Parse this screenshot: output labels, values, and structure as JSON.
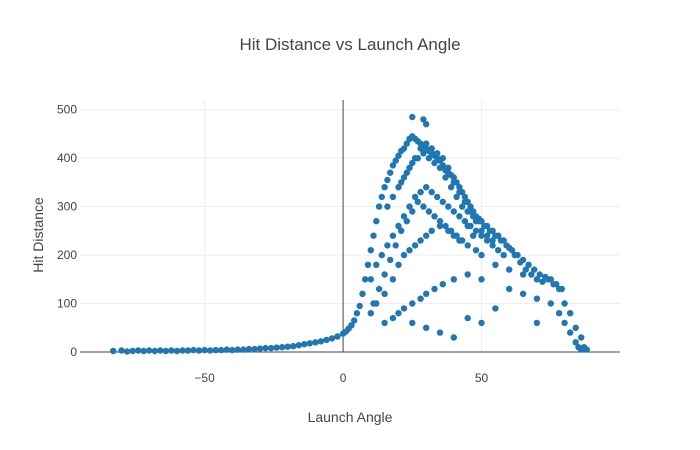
{
  "chart_data": {
    "type": "scatter",
    "title": "Hit Distance vs Launch Angle",
    "xlabel": "Launch Angle",
    "ylabel": "Hit Distance",
    "xlim": [
      -95,
      100
    ],
    "ylim": [
      0,
      520
    ],
    "xticks": [
      -50,
      0,
      50
    ],
    "yticks": [
      0,
      100,
      200,
      300,
      400,
      500
    ],
    "grid": true,
    "marker_color": "#1f77b4",
    "series": [
      {
        "name": "",
        "points": [
          [
            -83,
            2
          ],
          [
            -80,
            3
          ],
          [
            -78,
            1
          ],
          [
            -76,
            2
          ],
          [
            -74,
            3
          ],
          [
            -72,
            2
          ],
          [
            -70,
            3
          ],
          [
            -68,
            2
          ],
          [
            -66,
            3
          ],
          [
            -64,
            2
          ],
          [
            -62,
            3
          ],
          [
            -60,
            2
          ],
          [
            -58,
            3
          ],
          [
            -56,
            3
          ],
          [
            -54,
            4
          ],
          [
            -52,
            3
          ],
          [
            -50,
            4
          ],
          [
            -48,
            3
          ],
          [
            -46,
            4
          ],
          [
            -44,
            4
          ],
          [
            -42,
            5
          ],
          [
            -40,
            4
          ],
          [
            -38,
            5
          ],
          [
            -36,
            5
          ],
          [
            -34,
            6
          ],
          [
            -32,
            6
          ],
          [
            -30,
            7
          ],
          [
            -28,
            8
          ],
          [
            -26,
            8
          ],
          [
            -24,
            9
          ],
          [
            -22,
            10
          ],
          [
            -20,
            11
          ],
          [
            -18,
            12
          ],
          [
            -16,
            14
          ],
          [
            -14,
            16
          ],
          [
            -12,
            18
          ],
          [
            -10,
            20
          ],
          [
            -8,
            22
          ],
          [
            -6,
            25
          ],
          [
            -4,
            28
          ],
          [
            -2,
            32
          ],
          [
            0,
            38
          ],
          [
            1,
            42
          ],
          [
            2,
            48
          ],
          [
            3,
            55
          ],
          [
            4,
            65
          ],
          [
            5,
            80
          ],
          [
            6,
            95
          ],
          [
            7,
            120
          ],
          [
            8,
            150
          ],
          [
            9,
            180
          ],
          [
            10,
            210
          ],
          [
            11,
            240
          ],
          [
            12,
            270
          ],
          [
            13,
            300
          ],
          [
            14,
            320
          ],
          [
            15,
            340
          ],
          [
            16,
            355
          ],
          [
            17,
            370
          ],
          [
            18,
            385
          ],
          [
            19,
            395
          ],
          [
            20,
            405
          ],
          [
            21,
            415
          ],
          [
            22,
            420
          ],
          [
            23,
            430
          ],
          [
            24,
            440
          ],
          [
            25,
            445
          ],
          [
            26,
            440
          ],
          [
            27,
            435
          ],
          [
            28,
            430
          ],
          [
            29,
            425
          ],
          [
            30,
            420
          ],
          [
            31,
            415
          ],
          [
            32,
            410
          ],
          [
            33,
            405
          ],
          [
            34,
            400
          ],
          [
            35,
            395
          ],
          [
            36,
            385
          ],
          [
            37,
            375
          ],
          [
            38,
            370
          ],
          [
            39,
            365
          ],
          [
            40,
            360
          ],
          [
            41,
            350
          ],
          [
            42,
            340
          ],
          [
            43,
            330
          ],
          [
            44,
            320
          ],
          [
            45,
            310
          ],
          [
            46,
            300
          ],
          [
            47,
            290
          ],
          [
            48,
            280
          ],
          [
            49,
            275
          ],
          [
            50,
            270
          ],
          [
            52,
            260
          ],
          [
            54,
            250
          ],
          [
            56,
            240
          ],
          [
            58,
            230
          ],
          [
            60,
            215
          ],
          [
            62,
            200
          ],
          [
            64,
            185
          ],
          [
            66,
            170
          ],
          [
            68,
            160
          ],
          [
            70,
            150
          ],
          [
            72,
            145
          ],
          [
            74,
            150
          ],
          [
            76,
            140
          ],
          [
            78,
            130
          ],
          [
            80,
            100
          ],
          [
            82,
            80
          ],
          [
            84,
            50
          ],
          [
            86,
            30
          ],
          [
            87,
            10
          ],
          [
            88,
            5
          ],
          [
            25,
            485
          ],
          [
            29,
            480
          ],
          [
            30,
            470
          ],
          [
            10,
            150
          ],
          [
            12,
            180
          ],
          [
            14,
            200
          ],
          [
            16,
            220
          ],
          [
            18,
            240
          ],
          [
            20,
            260
          ],
          [
            22,
            280
          ],
          [
            24,
            300
          ],
          [
            26,
            320
          ],
          [
            28,
            330
          ],
          [
            30,
            340
          ],
          [
            32,
            330
          ],
          [
            34,
            320
          ],
          [
            36,
            310
          ],
          [
            38,
            300
          ],
          [
            40,
            290
          ],
          [
            42,
            280
          ],
          [
            44,
            270
          ],
          [
            46,
            260
          ],
          [
            48,
            250
          ],
          [
            50,
            240
          ],
          [
            52,
            230
          ],
          [
            54,
            220
          ],
          [
            56,
            210
          ],
          [
            58,
            200
          ],
          [
            12,
            100
          ],
          [
            15,
            120
          ],
          [
            18,
            150
          ],
          [
            20,
            180
          ],
          [
            22,
            200
          ],
          [
            24,
            210
          ],
          [
            26,
            220
          ],
          [
            28,
            230
          ],
          [
            30,
            240
          ],
          [
            32,
            250
          ],
          [
            35,
            260
          ],
          [
            38,
            250
          ],
          [
            40,
            240
          ],
          [
            42,
            230
          ],
          [
            45,
            220
          ],
          [
            48,
            210
          ],
          [
            50,
            200
          ],
          [
            55,
            180
          ],
          [
            60,
            170
          ],
          [
            65,
            160
          ],
          [
            20,
            80
          ],
          [
            22,
            90
          ],
          [
            25,
            100
          ],
          [
            28,
            110
          ],
          [
            30,
            120
          ],
          [
            33,
            130
          ],
          [
            36,
            140
          ],
          [
            40,
            150
          ],
          [
            45,
            160
          ],
          [
            50,
            150
          ],
          [
            60,
            130
          ],
          [
            65,
            120
          ],
          [
            70,
            110
          ],
          [
            75,
            100
          ],
          [
            78,
            80
          ],
          [
            80,
            60
          ],
          [
            82,
            40
          ],
          [
            84,
            20
          ],
          [
            85,
            10
          ],
          [
            86,
            5
          ],
          [
            15,
            60
          ],
          [
            18,
            70
          ],
          [
            25,
            60
          ],
          [
            30,
            50
          ],
          [
            35,
            40
          ],
          [
            40,
            30
          ],
          [
            45,
            70
          ],
          [
            50,
            60
          ],
          [
            55,
            90
          ],
          [
            70,
            60
          ],
          [
            10,
            80
          ],
          [
            11,
            100
          ],
          [
            13,
            130
          ],
          [
            15,
            160
          ],
          [
            17,
            190
          ],
          [
            19,
            220
          ],
          [
            21,
            250
          ],
          [
            23,
            270
          ],
          [
            25,
            290
          ],
          [
            27,
            310
          ],
          [
            29,
            300
          ],
          [
            31,
            290
          ],
          [
            33,
            280
          ],
          [
            35,
            270
          ],
          [
            37,
            260
          ],
          [
            39,
            250
          ],
          [
            41,
            240
          ],
          [
            43,
            230
          ],
          [
            45,
            260
          ],
          [
            47,
            240
          ],
          [
            21,
            350
          ],
          [
            23,
            370
          ],
          [
            25,
            390
          ],
          [
            27,
            400
          ],
          [
            29,
            410
          ],
          [
            31,
            400
          ],
          [
            33,
            390
          ],
          [
            35,
            380
          ],
          [
            37,
            360
          ],
          [
            39,
            340
          ],
          [
            41,
            320
          ],
          [
            43,
            300
          ],
          [
            45,
            290
          ],
          [
            47,
            280
          ],
          [
            49,
            270
          ],
          [
            51,
            260
          ],
          [
            53,
            250
          ],
          [
            55,
            240
          ],
          [
            57,
            230
          ],
          [
            59,
            220
          ],
          [
            61,
            210
          ],
          [
            63,
            200
          ],
          [
            65,
            190
          ],
          [
            67,
            180
          ],
          [
            69,
            170
          ],
          [
            71,
            160
          ],
          [
            73,
            155
          ],
          [
            75,
            150
          ],
          [
            77,
            140
          ],
          [
            79,
            130
          ],
          [
            16,
            300
          ],
          [
            18,
            320
          ],
          [
            20,
            340
          ],
          [
            22,
            360
          ],
          [
            24,
            380
          ],
          [
            26,
            400
          ],
          [
            28,
            420
          ],
          [
            30,
            430
          ],
          [
            32,
            420
          ],
          [
            34,
            410
          ],
          [
            36,
            400
          ],
          [
            38,
            380
          ],
          [
            40,
            350
          ],
          [
            42,
            330
          ],
          [
            44,
            310
          ],
          [
            46,
            290
          ],
          [
            48,
            270
          ],
          [
            50,
            250
          ],
          [
            52,
            240
          ],
          [
            54,
            230
          ]
        ]
      }
    ]
  }
}
